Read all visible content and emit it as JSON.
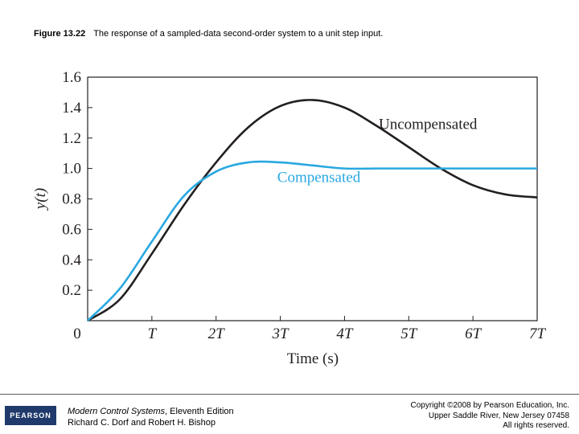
{
  "caption": {
    "figure_label": "Figure 13.22",
    "text": "The response of a sampled-data second-order system to a unit step input."
  },
  "chart_data": {
    "type": "line",
    "xlabel": "Time (s)",
    "ylabel": "y(t)",
    "xlim": [
      0,
      7
    ],
    "ylim": [
      0,
      1.6
    ],
    "x_ticks": [
      {
        "value": 0,
        "label": "0"
      },
      {
        "value": 1,
        "label": "T"
      },
      {
        "value": 2,
        "label": "2T"
      },
      {
        "value": 3,
        "label": "3T"
      },
      {
        "value": 4,
        "label": "4T"
      },
      {
        "value": 5,
        "label": "5T"
      },
      {
        "value": 6,
        "label": "6T"
      },
      {
        "value": 7,
        "label": "7T"
      }
    ],
    "y_ticks": [
      {
        "value": 0.2,
        "label": "0.2"
      },
      {
        "value": 0.4,
        "label": "0.4"
      },
      {
        "value": 0.6,
        "label": "0.6"
      },
      {
        "value": 0.8,
        "label": "0.8"
      },
      {
        "value": 1.0,
        "label": "1.0"
      },
      {
        "value": 1.2,
        "label": "1.2"
      },
      {
        "value": 1.4,
        "label": "1.4"
      },
      {
        "value": 1.6,
        "label": "1.6"
      }
    ],
    "grid": false,
    "series": [
      {
        "name": "Uncompensated",
        "color": "#231f20",
        "x": [
          0,
          0.5,
          1.0,
          1.5,
          2.0,
          2.5,
          3.0,
          3.5,
          4.0,
          4.5,
          5.0,
          5.5,
          6.0,
          6.5,
          7.0
        ],
        "y": [
          0,
          0.14,
          0.44,
          0.76,
          1.04,
          1.27,
          1.41,
          1.45,
          1.4,
          1.28,
          1.14,
          1.0,
          0.89,
          0.83,
          0.81
        ]
      },
      {
        "name": "Compensated",
        "color": "#29a8e0",
        "x": [
          0,
          0.5,
          1.0,
          1.5,
          2.0,
          2.5,
          3.0,
          3.5,
          4.0,
          4.5,
          5.0,
          5.5,
          6.0,
          6.5,
          7.0
        ],
        "y": [
          0,
          0.21,
          0.52,
          0.82,
          0.98,
          1.04,
          1.04,
          1.02,
          1.0,
          1.0,
          1.0,
          1.0,
          1.0,
          1.0,
          1.0
        ]
      }
    ],
    "annotations": [
      {
        "text": "Uncompensated",
        "x": 5.3,
        "y": 1.26,
        "color": "#231f20"
      },
      {
        "text": "Compensated",
        "x": 3.6,
        "y": 0.91,
        "color": "#29a8e0"
      }
    ]
  },
  "footer": {
    "logo_text": "PEARSON",
    "book_title": "Modern Control Systems",
    "edition": ", Eleventh Edition",
    "authors": "Richard C. Dorf and Robert H. Bishop",
    "copyright_lines": [
      "Copyright ©2008 by Pearson Education, Inc.",
      "Upper Saddle River, New Jersey 07458",
      "All rights reserved."
    ]
  }
}
